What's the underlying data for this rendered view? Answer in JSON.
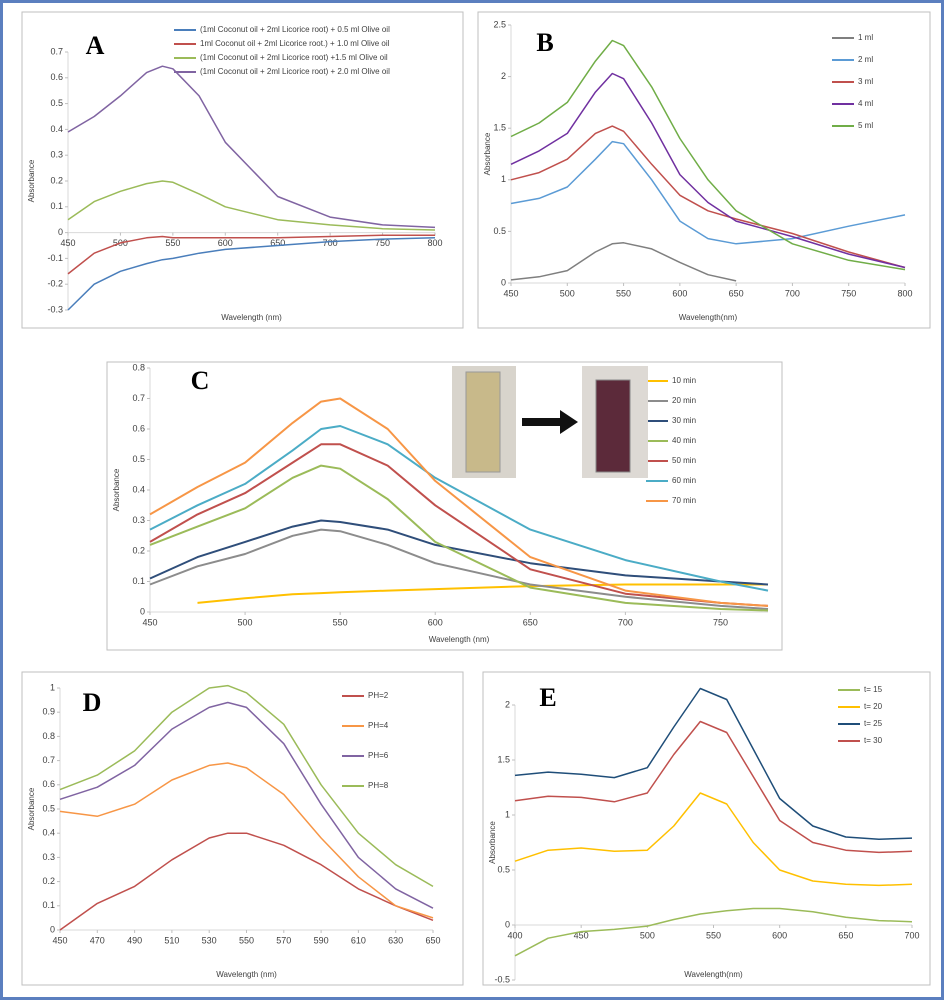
{
  "chart_data": [
    {
      "type": "line",
      "label": "A",
      "xlabel": "Wavelength (nm)",
      "ylabel": "Absorbance",
      "x": [
        450,
        475,
        500,
        525,
        540,
        550,
        575,
        600,
        650,
        700,
        750,
        800
      ],
      "series": [
        {
          "name": "(1ml Coconut oil + 2ml Licorice root) + 0.5 ml Olive oil",
          "color": "#4a7ebb",
          "values": [
            -0.3,
            -0.2,
            -0.15,
            -0.12,
            -0.105,
            -0.1,
            -0.08,
            -0.065,
            -0.05,
            -0.035,
            -0.025,
            -0.02
          ]
        },
        {
          "name": "1ml Coconut oil + 2ml Licorice root.) + 1.0 ml Olive oil",
          "color": "#c0504d",
          "values": [
            -0.16,
            -0.08,
            -0.04,
            -0.02,
            -0.015,
            -0.02,
            -0.02,
            -0.02,
            -0.02,
            -0.015,
            -0.01,
            -0.01
          ]
        },
        {
          "name": "(1ml Coconut oil + 2ml Licorice root) +1.5 ml Olive oil",
          "color": "#9bbb59",
          "values": [
            0.05,
            0.12,
            0.16,
            0.19,
            0.2,
            0.195,
            0.15,
            0.1,
            0.05,
            0.03,
            0.015,
            0.01
          ]
        },
        {
          "name": "(1ml Coconut oil + 2ml Licorice root) + 2.0 ml Olive oil",
          "color": "#8064a2",
          "values": [
            0.39,
            0.45,
            0.53,
            0.62,
            0.645,
            0.635,
            0.53,
            0.35,
            0.14,
            0.06,
            0.03,
            0.02
          ]
        }
      ],
      "xlim": [
        450,
        800
      ],
      "ylim": [
        -0.3,
        0.7
      ],
      "xticks": [
        450,
        500,
        550,
        600,
        650,
        700,
        750,
        800
      ],
      "yticks": [
        -0.3,
        -0.2,
        -0.1,
        0,
        0.1,
        0.2,
        0.3,
        0.4,
        0.5,
        0.6,
        0.7
      ]
    },
    {
      "type": "line",
      "label": "B",
      "xlabel": "Wavelength(nm)",
      "ylabel": "Absorbance",
      "x": [
        450,
        475,
        500,
        525,
        540,
        550,
        575,
        600,
        625,
        650,
        700,
        750,
        800
      ],
      "series": [
        {
          "name": "1 ml",
          "color": "#7f7f7f",
          "values": [
            0.03,
            0.06,
            0.12,
            0.3,
            0.38,
            0.39,
            0.33,
            0.2,
            0.08,
            0.02,
            null,
            null,
            null
          ]
        },
        {
          "name": "2 ml",
          "color": "#5b9bd5",
          "values": [
            0.77,
            0.82,
            0.93,
            1.2,
            1.37,
            1.35,
            1.0,
            0.6,
            0.43,
            0.38,
            0.43,
            0.55,
            0.66
          ]
        },
        {
          "name": "3 ml",
          "color": "#c0504d",
          "values": [
            1.0,
            1.07,
            1.2,
            1.45,
            1.52,
            1.47,
            1.15,
            0.85,
            0.7,
            0.62,
            0.48,
            0.3,
            0.15
          ]
        },
        {
          "name": "4 ml",
          "color": "#7030a0",
          "values": [
            1.15,
            1.28,
            1.45,
            1.85,
            2.03,
            1.98,
            1.55,
            1.05,
            0.78,
            0.6,
            0.45,
            0.28,
            0.15
          ]
        },
        {
          "name": "5 ml",
          "color": "#70ad47",
          "values": [
            1.42,
            1.55,
            1.75,
            2.15,
            2.35,
            2.3,
            1.9,
            1.4,
            1.0,
            0.7,
            0.38,
            0.22,
            0.13
          ]
        }
      ],
      "xlim": [
        450,
        800
      ],
      "ylim": [
        0,
        2.5
      ],
      "xticks": [
        450,
        500,
        550,
        600,
        650,
        700,
        750,
        800
      ],
      "yticks": [
        0,
        0.5,
        1,
        1.5,
        2,
        2.5
      ]
    },
    {
      "type": "line",
      "label": "C",
      "xlabel": "Wavelength (nm)",
      "ylabel": "Absorbance",
      "x": [
        450,
        475,
        500,
        525,
        540,
        550,
        575,
        600,
        650,
        700,
        750,
        775
      ],
      "series": [
        {
          "name": "10 min",
          "color": "#ffc000",
          "values": [
            null,
            0.03,
            0.045,
            0.058,
            0.062,
            0.065,
            0.07,
            0.075,
            0.085,
            0.09,
            0.09,
            0.09
          ]
        },
        {
          "name": "20 min",
          "color": "#8c8c8c",
          "values": [
            0.09,
            0.15,
            0.19,
            0.25,
            0.27,
            0.265,
            0.22,
            0.16,
            0.09,
            0.05,
            0.02,
            0.01
          ]
        },
        {
          "name": "30 min",
          "color": "#2f4e7a",
          "values": [
            0.11,
            0.18,
            0.23,
            0.28,
            0.3,
            0.295,
            0.27,
            0.22,
            0.16,
            0.12,
            0.1,
            0.09
          ]
        },
        {
          "name": "40 min",
          "color": "#9bbb59",
          "values": [
            0.22,
            0.28,
            0.34,
            0.44,
            0.48,
            0.47,
            0.37,
            0.23,
            0.08,
            0.03,
            0.01,
            0.005
          ]
        },
        {
          "name": "50 min",
          "color": "#c0504d",
          "values": [
            0.23,
            0.32,
            0.39,
            0.49,
            0.55,
            0.55,
            0.48,
            0.35,
            0.14,
            0.06,
            0.03,
            0.02
          ]
        },
        {
          "name": "60 min",
          "color": "#4bacc6",
          "values": [
            0.27,
            0.35,
            0.42,
            0.53,
            0.6,
            0.61,
            0.55,
            0.44,
            0.27,
            0.17,
            0.1,
            0.07
          ]
        },
        {
          "name": "70 min",
          "color": "#f79646",
          "values": [
            0.32,
            0.41,
            0.49,
            0.62,
            0.69,
            0.7,
            0.6,
            0.43,
            0.18,
            0.07,
            0.03,
            0.02
          ]
        }
      ],
      "xlim": [
        450,
        775
      ],
      "ylim": [
        0,
        0.8
      ],
      "xticks": [
        450,
        500,
        550,
        600,
        650,
        700,
        750
      ],
      "yticks": [
        0,
        0.1,
        0.2,
        0.3,
        0.4,
        0.5,
        0.6,
        0.7,
        0.8
      ]
    },
    {
      "type": "line",
      "label": "D",
      "xlabel": "Wavelength (nm)",
      "ylabel": "Absorbance",
      "x": [
        450,
        470,
        490,
        510,
        530,
        540,
        550,
        570,
        590,
        610,
        630,
        650
      ],
      "series": [
        {
          "name": "PH=2",
          "color": "#c0504d",
          "values": [
            0.0,
            0.11,
            0.18,
            0.29,
            0.38,
            0.4,
            0.4,
            0.35,
            0.27,
            0.17,
            0.1,
            0.04
          ]
        },
        {
          "name": "PH=4",
          "color": "#f79646",
          "values": [
            0.49,
            0.47,
            0.52,
            0.62,
            0.68,
            0.69,
            0.67,
            0.56,
            0.38,
            0.22,
            0.1,
            0.05
          ]
        },
        {
          "name": "PH=6",
          "color": "#8064a2",
          "values": [
            0.54,
            0.59,
            0.68,
            0.83,
            0.92,
            0.94,
            0.92,
            0.77,
            0.52,
            0.3,
            0.17,
            0.09
          ]
        },
        {
          "name": "PH=8",
          "color": "#9bbb59",
          "values": [
            0.58,
            0.64,
            0.74,
            0.9,
            1.0,
            1.01,
            0.98,
            0.85,
            0.6,
            0.4,
            0.27,
            0.18
          ]
        }
      ],
      "xlim": [
        450,
        650
      ],
      "ylim": [
        0,
        1
      ],
      "xticks": [
        450,
        470,
        490,
        510,
        530,
        550,
        570,
        590,
        610,
        630,
        650
      ],
      "yticks": [
        0,
        0.1,
        0.2,
        0.3,
        0.4,
        0.5,
        0.6,
        0.7,
        0.8,
        0.9,
        1
      ]
    },
    {
      "type": "line",
      "label": "E",
      "xlabel": "Wavelength(nm)",
      "ylabel": "Absorbance",
      "x": [
        400,
        425,
        450,
        475,
        500,
        520,
        540,
        560,
        580,
        600,
        625,
        650,
        675,
        700
      ],
      "series": [
        {
          "name": "t= 15",
          "color": "#9bbb59",
          "values": [
            -0.28,
            -0.12,
            -0.06,
            -0.04,
            -0.01,
            0.05,
            0.1,
            0.13,
            0.15,
            0.15,
            0.12,
            0.07,
            0.04,
            0.03
          ]
        },
        {
          "name": "t= 20",
          "color": "#ffc000",
          "values": [
            0.58,
            0.68,
            0.7,
            0.67,
            0.68,
            0.9,
            1.2,
            1.1,
            0.75,
            0.5,
            0.4,
            0.37,
            0.36,
            0.37
          ]
        },
        {
          "name": "t= 25",
          "color": "#1f4e79",
          "values": [
            1.36,
            1.39,
            1.37,
            1.34,
            1.43,
            1.8,
            2.15,
            2.05,
            1.6,
            1.15,
            0.9,
            0.8,
            0.78,
            0.79
          ]
        },
        {
          "name": "t= 30",
          "color": "#c0504d",
          "values": [
            1.13,
            1.17,
            1.16,
            1.12,
            1.2,
            1.55,
            1.85,
            1.75,
            1.35,
            0.95,
            0.75,
            0.68,
            0.66,
            0.67
          ]
        }
      ],
      "xlim": [
        400,
        700
      ],
      "ylim": [
        -0.5,
        2
      ],
      "xticks": [
        400,
        450,
        500,
        550,
        600,
        650,
        700
      ],
      "yticks": [
        -0.5,
        0,
        0.5,
        1,
        1.5,
        2
      ]
    }
  ]
}
